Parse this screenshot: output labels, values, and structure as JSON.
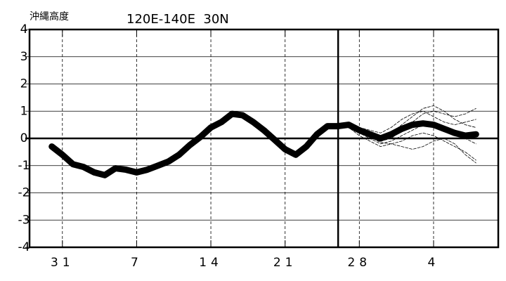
{
  "chart_data": {
    "type": "line",
    "title": "沖縄高度",
    "subtitle": "120E-140E  30N",
    "xlim": [
      -3.1,
      41.1
    ],
    "xticks": [
      {
        "value": 0,
        "label": "31"
      },
      7,
      14,
      21,
      28,
      {
        "value": 35,
        "label": "4"
      }
    ],
    "ylim": [
      -4,
      4
    ],
    "yticks": [
      -4,
      -3,
      -2,
      -1,
      0,
      1,
      2,
      3,
      4
    ],
    "vline": 26,
    "grid": true,
    "series": [
      {
        "color": "#000000",
        "dashed": true,
        "line_width": 0.8,
        "x": [
          26,
          27,
          28,
          29,
          30,
          31,
          32,
          33,
          34,
          35,
          36,
          37,
          38,
          39
        ],
        "values": [
          0.45,
          0.5,
          0.3,
          0.1,
          -0.1,
          0,
          0.3,
          0.6,
          0.9,
          1.0,
          0.9,
          0.8,
          0.9,
          1.1
        ]
      },
      {
        "color": "#000000",
        "dashed": true,
        "line_width": 0.8,
        "x": [
          26,
          27,
          28,
          29,
          30,
          31,
          32,
          33,
          34,
          35,
          36,
          37,
          38,
          39
        ],
        "values": [
          0.45,
          0.4,
          0.2,
          0,
          -0.2,
          -0.1,
          0.1,
          0.3,
          0.5,
          0.6,
          0.4,
          0.2,
          0,
          -0.2
        ]
      },
      {
        "color": "#000000",
        "dashed": true,
        "line_width": 0.8,
        "x": [
          26,
          27,
          28,
          29,
          30,
          31,
          32,
          33,
          34,
          35,
          36,
          37,
          38,
          39
        ],
        "values": [
          0.45,
          0.5,
          0.4,
          0.3,
          0.2,
          0.4,
          0.7,
          0.9,
          1.0,
          0.8,
          0.6,
          0.5,
          0.6,
          0.7
        ]
      },
      {
        "color": "#000000",
        "dashed": true,
        "line_width": 0.8,
        "x": [
          26,
          27,
          28,
          29,
          30,
          31,
          32,
          33,
          34,
          35,
          36,
          37,
          38,
          39
        ],
        "values": [
          0.45,
          0.4,
          0.1,
          -0.1,
          -0.3,
          -0.2,
          -0.1,
          0.1,
          0.2,
          0.1,
          -0.1,
          -0.3,
          -0.5,
          -0.8
        ]
      },
      {
        "color": "#000000",
        "dashed": true,
        "line_width": 0.8,
        "x": [
          26,
          27,
          28,
          29,
          30,
          31,
          32,
          33,
          34,
          35,
          36,
          37,
          38,
          39
        ],
        "values": [
          0.45,
          0.5,
          0.35,
          0.2,
          0.05,
          0.2,
          0.5,
          0.8,
          1.1,
          1.2,
          1.0,
          0.7,
          0.5,
          0.4
        ]
      },
      {
        "color": "#000000",
        "dashed": true,
        "line_width": 0.8,
        "x": [
          26,
          27,
          28,
          29,
          30,
          31,
          32,
          33,
          34,
          35,
          36,
          37,
          38,
          39
        ],
        "values": [
          0.45,
          0.45,
          0.25,
          0.05,
          -0.15,
          -0.2,
          -0.3,
          -0.4,
          -0.3,
          -0.1,
          0,
          -0.2,
          -0.6,
          -0.9
        ]
      },
      {
        "color": "#000000",
        "dashed": false,
        "line_width": 9,
        "x": [
          -1,
          0,
          1,
          2,
          3,
          4,
          5,
          6,
          7,
          8,
          9,
          10,
          11,
          12,
          13,
          14,
          15,
          16,
          17,
          18,
          19,
          20,
          21,
          22,
          23,
          24,
          25,
          26,
          27,
          28,
          29,
          30,
          31,
          32,
          33,
          34,
          35,
          36,
          37,
          38,
          39
        ],
        "values": [
          -0.3,
          -0.6,
          -0.95,
          -1.05,
          -1.25,
          -1.35,
          -1.1,
          -1.15,
          -1.25,
          -1.15,
          -1.0,
          -0.85,
          -0.6,
          -0.25,
          0.05,
          0.4,
          0.6,
          0.9,
          0.85,
          0.6,
          0.3,
          -0.05,
          -0.4,
          -0.6,
          -0.3,
          0.15,
          0.45,
          0.45,
          0.5,
          0.3,
          0.15,
          0,
          0.15,
          0.35,
          0.5,
          0.55,
          0.5,
          0.35,
          0.2,
          0.1,
          0.15
        ]
      }
    ]
  }
}
